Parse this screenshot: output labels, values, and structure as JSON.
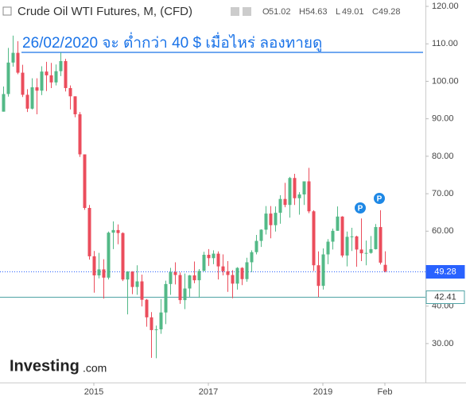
{
  "chart_data": {
    "type": "candlestick",
    "title": "Crude Oil WTI Futures, M, (CFD)",
    "ohlc_labels": [
      "O",
      "H",
      "L",
      "C"
    ],
    "annotation": "26/02/2020  จะ ต่ำกว่า 40 $ เมื่อไหร่ ลองทายดู",
    "logo": [
      "Investing",
      ".com"
    ],
    "marker_label": "P",
    "up_color": "#53b987",
    "down_color": "#eb4d5c",
    "categories": [
      null,
      null,
      null,
      null,
      null,
      null,
      null,
      null,
      null,
      null,
      null,
      null,
      null,
      null,
      null,
      null,
      null,
      null,
      null,
      "2015",
      null,
      null,
      null,
      null,
      null,
      null,
      null,
      null,
      null,
      null,
      null,
      null,
      null,
      null,
      null,
      null,
      null,
      null,
      null,
      null,
      null,
      null,
      null,
      "2017",
      null,
      null,
      null,
      null,
      null,
      null,
      null,
      null,
      null,
      null,
      null,
      null,
      null,
      null,
      null,
      null,
      null,
      null,
      null,
      null,
      null,
      null,
      null,
      "2019",
      null,
      null,
      null,
      null,
      null,
      null,
      null,
      null,
      null,
      null,
      null,
      null,
      "Feb"
    ],
    "open": [
      91.9,
      96.6,
      105.0,
      107.6,
      102.3,
      96.4,
      92.7,
      98.4,
      97.5,
      102.6,
      101.6,
      99.7,
      102.7,
      105.4,
      98.2,
      96.0,
      91.2,
      80.5,
      66.2,
      53.3,
      48.2,
      49.8,
      47.6,
      59.6,
      60.3,
      59.5,
      47.1,
      49.2,
      45.1,
      46.6,
      41.7,
      37.0,
      33.6,
      33.8,
      38.3,
      45.9,
      49.1,
      48.3,
      41.6,
      44.7,
      48.2,
      46.9,
      49.4,
      53.7,
      52.8,
      54.0,
      50.6,
      49.3,
      48.3,
      46.0,
      50.2,
      47.2,
      51.7,
      54.4,
      57.4,
      60.4,
      64.7,
      61.6,
      64.9,
      68.6,
      67.0,
      74.2,
      68.8,
      69.8,
      73.3,
      65.3,
      50.9,
      45.4,
      53.8,
      57.2,
      60.1,
      63.9,
      53.5,
      58.5,
      58.6,
      55.1,
      54.1,
      54.2,
      55.2,
      61.1,
      51.02
    ],
    "high": [
      98.6,
      108.9,
      112.2,
      110.7,
      104.4,
      97.9,
      100.8,
      100.8,
      104.0,
      105.2,
      104.9,
      104.5,
      107.7,
      106.0,
      98.9,
      96.0,
      91.8,
      80.5,
      67.0,
      54.7,
      54.2,
      52.5,
      59.9,
      62.6,
      61.8,
      59.7,
      49.3,
      49.3,
      50.9,
      48.4,
      41.9,
      38.4,
      34.8,
      41.9,
      46.8,
      50.2,
      51.7,
      49.0,
      48.7,
      48.3,
      51.9,
      49.9,
      54.5,
      55.2,
      54.9,
      54.6,
      53.8,
      52.0,
      49.6,
      50.4,
      50.4,
      52.9,
      54.9,
      59.0,
      60.5,
      66.7,
      66.7,
      66.6,
      69.6,
      72.9,
      74.5,
      75.3,
      70.4,
      73.3,
      76.9,
      65.6,
      54.6,
      55.4,
      57.9,
      60.7,
      66.6,
      64.0,
      59.9,
      60.9,
      58.8,
      63.4,
      57.5,
      58.7,
      61.9,
      65.6,
      54.63
    ],
    "low": [
      91.9,
      95.9,
      103.9,
      101.9,
      95.8,
      91.8,
      92.5,
      91.2,
      96.3,
      97.4,
      98.2,
      98.9,
      101.4,
      97.3,
      92.5,
      90.4,
      79.8,
      65.7,
      52.4,
      43.6,
      47.4,
      42.0,
      47.1,
      55.2,
      56.5,
      46.7,
      37.8,
      43.2,
      43.0,
      39.9,
      34.5,
      26.2,
      26.1,
      32.6,
      35.2,
      43.0,
      45.8,
      40.6,
      39.2,
      42.5,
      46.1,
      42.2,
      49.3,
      50.7,
      51.2,
      47.1,
      48.2,
      43.8,
      42.1,
      44.4,
      45.6,
      46.5,
      49.1,
      53.8,
      55.8,
      59.1,
      58.1,
      59.9,
      62.0,
      66.4,
      63.6,
      67.0,
      64.4,
      67.0,
      64.8,
      49.4,
      42.4,
      44.4,
      51.2,
      55.1,
      60.1,
      53.0,
      50.6,
      54.7,
      50.5,
      52.0,
      50.9,
      54.0,
      55.1,
      51.1,
      49.01
    ],
    "close": [
      96.6,
      105.0,
      107.6,
      102.3,
      96.4,
      92.7,
      98.4,
      97.5,
      102.6,
      101.6,
      99.7,
      102.7,
      105.4,
      98.2,
      96.0,
      91.2,
      80.5,
      66.2,
      53.3,
      48.2,
      49.8,
      47.6,
      59.6,
      60.3,
      59.5,
      47.1,
      49.2,
      45.1,
      46.6,
      41.7,
      37.0,
      33.6,
      33.8,
      38.3,
      45.9,
      49.1,
      48.3,
      41.6,
      44.7,
      48.2,
      46.9,
      49.4,
      53.7,
      52.8,
      54.0,
      50.6,
      49.3,
      48.3,
      46.0,
      50.2,
      47.2,
      51.7,
      54.4,
      57.4,
      60.4,
      64.7,
      61.6,
      64.9,
      68.6,
      67.0,
      74.2,
      68.8,
      69.8,
      73.3,
      65.3,
      50.9,
      45.4,
      53.8,
      57.2,
      60.1,
      63.9,
      53.5,
      58.5,
      58.6,
      55.1,
      54.1,
      54.2,
      55.2,
      61.1,
      51.6,
      49.28
    ],
    "price_lines": [
      {
        "value": 49.28,
        "color": "#2962ff",
        "style": "dotted"
      },
      {
        "value": 42.41,
        "color": "#4fa3a5",
        "style": "solid"
      }
    ],
    "ylim": [
      19.6,
      121.7
    ],
    "yticks": [
      {
        "value": 30,
        "label": "30.00"
      },
      {
        "value": 40,
        "label": "40.00"
      },
      {
        "value": 50,
        "label": "50.00"
      },
      {
        "value": 60,
        "label": "60.00"
      },
      {
        "value": 70,
        "label": "70.00"
      },
      {
        "value": 80,
        "label": "80.00"
      },
      {
        "value": 90,
        "label": "90.00"
      },
      {
        "value": 100,
        "label": "100.00"
      },
      {
        "value": 110,
        "label": "110.00"
      },
      {
        "value": 120,
        "label": "120.00"
      }
    ]
  }
}
